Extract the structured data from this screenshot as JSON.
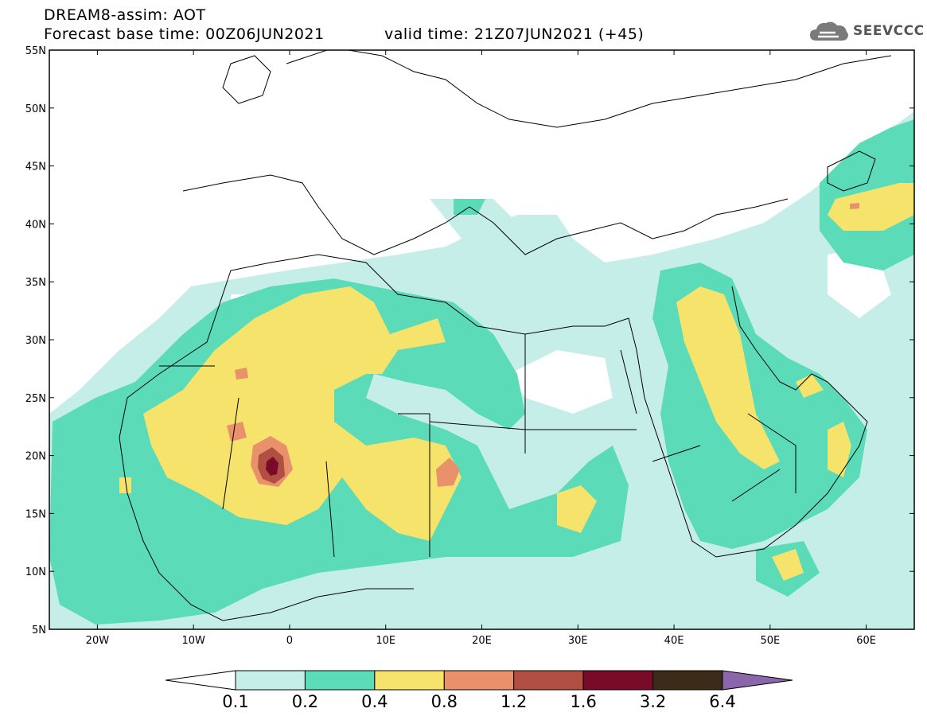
{
  "header": {
    "line1": "DREAM8-assim: AOT",
    "line2": "Forecast base time: 00Z06JUN2021",
    "valid": "valid time: 21Z07JUN2021 (+45)"
  },
  "logo": {
    "text": "SEEVCCC",
    "icon": "cloud-icon"
  },
  "map": {
    "projection": "latitude-longitude",
    "lon_range": [
      -25,
      65
    ],
    "lat_range": [
      5,
      55
    ],
    "lat_labels": [
      "55N",
      "50N",
      "45N",
      "40N",
      "35N",
      "30N",
      "25N",
      "20N",
      "15N",
      "10N",
      "5N"
    ],
    "lat_values": [
      55,
      50,
      45,
      40,
      35,
      30,
      25,
      20,
      15,
      10,
      5
    ],
    "lon_labels": [
      "20W",
      "10W",
      "0",
      "10E",
      "20E",
      "30E",
      "40E",
      "50E",
      "60E"
    ],
    "lon_values": [
      -20,
      -10,
      0,
      10,
      20,
      30,
      40,
      50,
      60
    ]
  },
  "colorbar": {
    "levels": [
      "0.1",
      "0.2",
      "0.4",
      "0.8",
      "1.2",
      "1.6",
      "3.2",
      "6.4"
    ],
    "colors": [
      "#ffffff",
      "#c6eee8",
      "#5bdbb8",
      "#f5e36b",
      "#e8916b",
      "#b24f43",
      "#7a0b28",
      "#3d2b1a",
      "#8b66aa"
    ]
  }
}
